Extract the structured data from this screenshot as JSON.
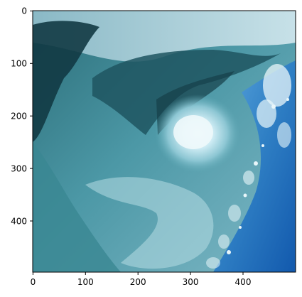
{
  "plot": {
    "x_ticks": [
      "0",
      "100",
      "200",
      "300",
      "400"
    ],
    "y_ticks": [
      "0",
      "100",
      "200",
      "300",
      "400"
    ],
    "x_range": [
      0,
      500
    ],
    "y_range": [
      0,
      500
    ],
    "y_axis_inverted": true,
    "grid": false,
    "frame_color": "#000000"
  },
  "image": {
    "subject": "breaking-ocean-wave-barrel",
    "palette": {
      "deep_teal": "#1f5560",
      "dark_shadow": "#0f2f38",
      "aqua": "#5fa9b6",
      "foam": "#e8f6fa",
      "sky_blue": "#2f7fc4",
      "bright_blue": "#1565c0"
    }
  }
}
